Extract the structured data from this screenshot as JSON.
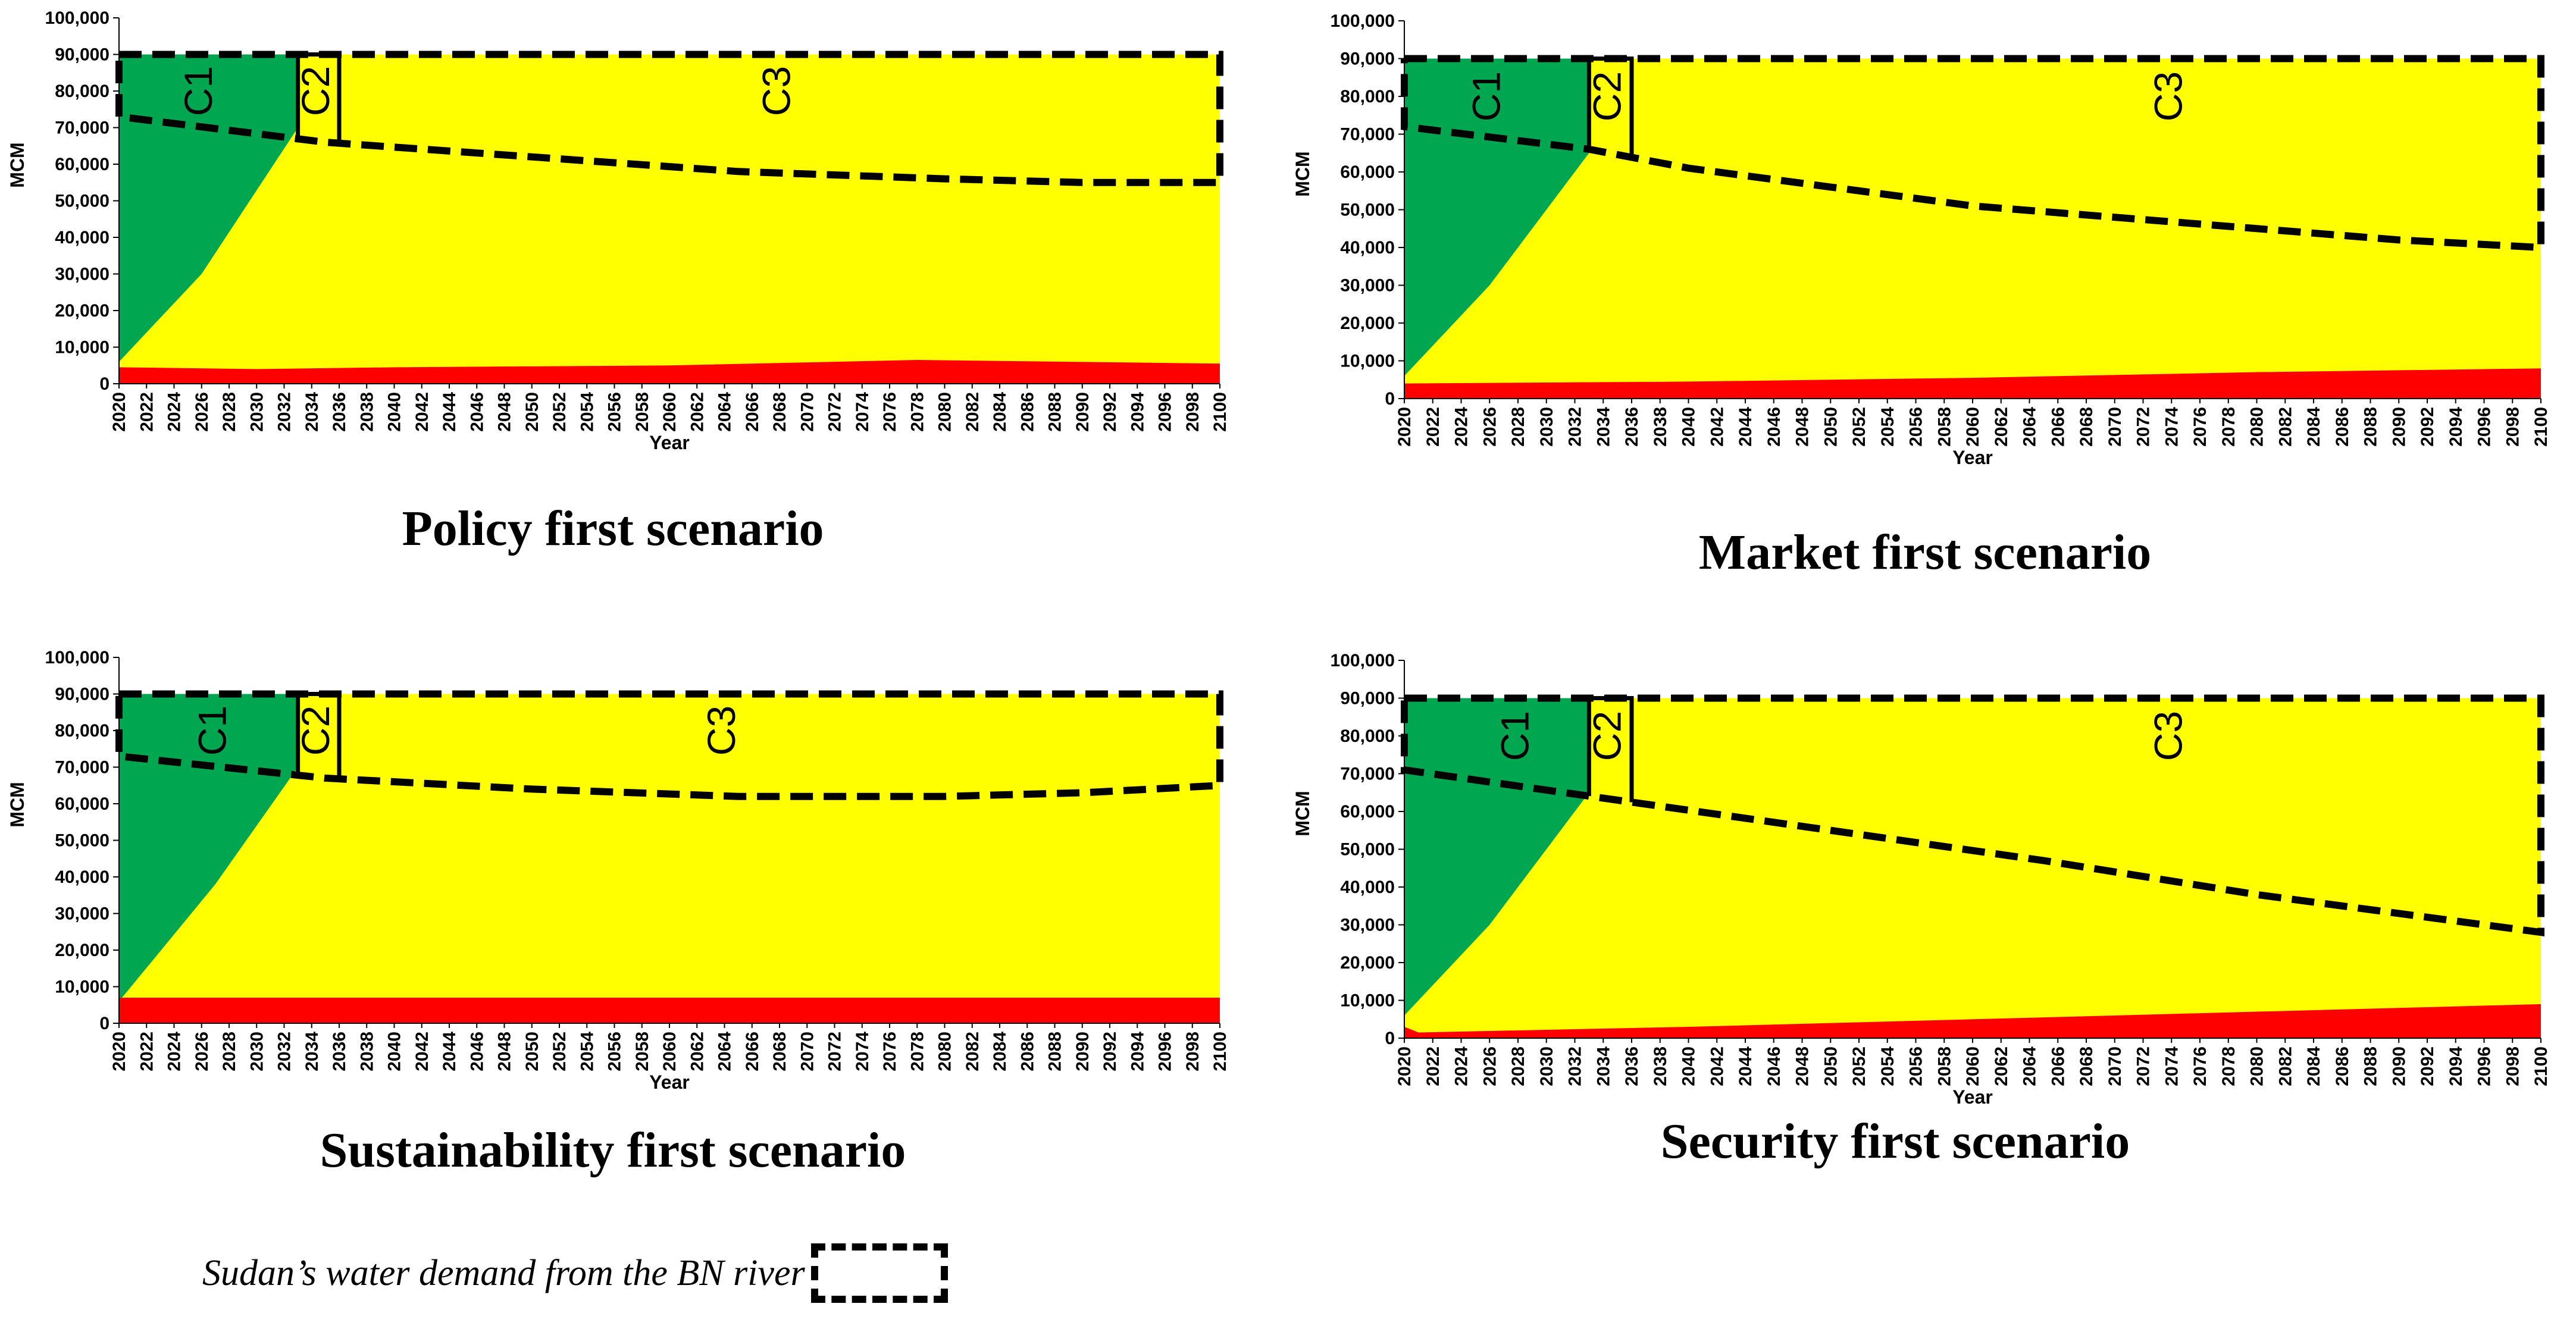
{
  "colors": {
    "green": "#00A650",
    "yellow": "#FFFF00",
    "red": "#FF0000",
    "demand": "#000000"
  },
  "legend": {
    "label": "Sudan’s water demand from the BN river"
  },
  "chart_data": [
    {
      "type": "area",
      "title": "Policy first scenario",
      "xlabel": "Year",
      "ylabel": "MCM",
      "ylim": [
        0,
        100000
      ],
      "yticks": [
        "0",
        "10,000",
        "20,000",
        "30,000",
        "40,000",
        "50,000",
        "60,000",
        "70,000",
        "80,000",
        "90,000",
        "100,000"
      ],
      "xlim": [
        2020,
        2100
      ],
      "xtick_step": 2,
      "series": [
        {
          "color": "red",
          "points": [
            [
              2020,
              4500
            ],
            [
              2030,
              4000
            ],
            [
              2040,
              4500
            ],
            [
              2060,
              5000
            ],
            [
              2078,
              6500
            ],
            [
              2100,
              5500
            ]
          ]
        },
        {
          "color": "yellow",
          "points": [
            [
              2020,
              90000
            ],
            [
              2100,
              90000
            ]
          ]
        },
        {
          "color": "green",
          "points": [
            [
              2020,
              90000
            ],
            [
              2033,
              90000
            ],
            [
              2033,
              70000
            ],
            [
              2026,
              30000
            ],
            [
              2020,
              6000
            ]
          ]
        }
      ],
      "demand": [
        [
          2020,
          73000
        ],
        [
          2035,
          66000
        ],
        [
          2050,
          62000
        ],
        [
          2065,
          58000
        ],
        [
          2080,
          56000
        ],
        [
          2090,
          55000
        ],
        [
          2100,
          55000
        ]
      ],
      "zones": [
        {
          "label": "C1",
          "x": 2026
        },
        {
          "label": "C2",
          "x": 2034.5
        },
        {
          "label": "C3",
          "x": 2068
        }
      ],
      "c2": [
        2033,
        2036
      ],
      "top": 90000
    },
    {
      "type": "area",
      "title": "Market first scenario",
      "xlabel": "Year",
      "ylabel": "MCM",
      "ylim": [
        0,
        100000
      ],
      "yticks": [
        "0",
        "10,000",
        "20,000",
        "30,000",
        "40,000",
        "50,000",
        "60,000",
        "70,000",
        "80,000",
        "90,000",
        "100,000"
      ],
      "xlim": [
        2020,
        2100
      ],
      "xtick_step": 2,
      "series": [
        {
          "color": "red",
          "points": [
            [
              2020,
              4000
            ],
            [
              2040,
              4500
            ],
            [
              2060,
              5500
            ],
            [
              2080,
              7000
            ],
            [
              2100,
              8000
            ]
          ]
        },
        {
          "color": "yellow",
          "points": [
            [
              2020,
              90000
            ],
            [
              2100,
              90000
            ]
          ]
        },
        {
          "color": "green",
          "points": [
            [
              2020,
              90000
            ],
            [
              2033,
              90000
            ],
            [
              2033,
              65000
            ],
            [
              2026,
              30000
            ],
            [
              2020,
              6000
            ]
          ]
        }
      ],
      "demand": [
        [
          2020,
          72000
        ],
        [
          2033,
          66000
        ],
        [
          2040,
          61000
        ],
        [
          2050,
          56000
        ],
        [
          2060,
          51000
        ],
        [
          2070,
          48000
        ],
        [
          2080,
          45000
        ],
        [
          2090,
          42000
        ],
        [
          2100,
          40000
        ]
      ],
      "zones": [
        {
          "label": "C1",
          "x": 2026
        },
        {
          "label": "C2",
          "x": 2034.5
        },
        {
          "label": "C3",
          "x": 2074
        }
      ],
      "c2": [
        2033,
        2036
      ],
      "top": 90000
    },
    {
      "type": "area",
      "title": "Sustainability first scenario",
      "xlabel": "Year",
      "ylabel": "MCM",
      "ylim": [
        0,
        100000
      ],
      "yticks": [
        "0",
        "10,000",
        "20,000",
        "30,000",
        "40,000",
        "50,000",
        "60,000",
        "70,000",
        "80,000",
        "90,000",
        "100,000"
      ],
      "xlim": [
        2020,
        2100
      ],
      "xtick_step": 2,
      "series": [
        {
          "color": "red",
          "points": [
            [
              2020,
              7000
            ],
            [
              2100,
              7000
            ]
          ]
        },
        {
          "color": "yellow",
          "points": [
            [
              2020,
              90000
            ],
            [
              2100,
              90000
            ]
          ]
        },
        {
          "color": "green",
          "points": [
            [
              2020,
              90000
            ],
            [
              2033,
              90000
            ],
            [
              2033,
              70000
            ],
            [
              2027,
              38000
            ],
            [
              2020,
              6000
            ]
          ]
        }
      ],
      "demand": [
        [
          2020,
          73000
        ],
        [
          2035,
          67000
        ],
        [
          2050,
          64000
        ],
        [
          2065,
          62000
        ],
        [
          2080,
          62000
        ],
        [
          2090,
          63000
        ],
        [
          2100,
          65000
        ]
      ],
      "zones": [
        {
          "label": "C1",
          "x": 2027
        },
        {
          "label": "C2",
          "x": 2034.5
        },
        {
          "label": "C3",
          "x": 2064
        }
      ],
      "c2": [
        2033,
        2036
      ],
      "top": 90000
    },
    {
      "type": "area",
      "title": "Security first scenario",
      "xlabel": "Year",
      "ylabel": "MCM",
      "ylim": [
        0,
        100000
      ],
      "yticks": [
        "0",
        "10,000",
        "20,000",
        "30,000",
        "40,000",
        "50,000",
        "60,000",
        "70,000",
        "80,000",
        "90,000",
        "100,000"
      ],
      "xlim": [
        2020,
        2100
      ],
      "xtick_step": 2,
      "series": [
        {
          "color": "red",
          "points": [
            [
              2020,
              3000
            ],
            [
              2021,
              1500
            ],
            [
              2040,
              3000
            ],
            [
              2060,
              5000
            ],
            [
              2080,
              7000
            ],
            [
              2100,
              9000
            ]
          ]
        },
        {
          "color": "yellow",
          "points": [
            [
              2020,
              90000
            ],
            [
              2100,
              90000
            ]
          ]
        },
        {
          "color": "green",
          "points": [
            [
              2020,
              90000
            ],
            [
              2033,
              90000
            ],
            [
              2033,
              65000
            ],
            [
              2026,
              30000
            ],
            [
              2020,
              6000
            ]
          ]
        }
      ],
      "demand": [
        [
          2020,
          71000
        ],
        [
          2035,
          63000
        ],
        [
          2050,
          55000
        ],
        [
          2065,
          47000
        ],
        [
          2080,
          38000
        ],
        [
          2090,
          33000
        ],
        [
          2100,
          28000
        ]
      ],
      "zones": [
        {
          "label": "C1",
          "x": 2028
        },
        {
          "label": "C2",
          "x": 2034.5
        },
        {
          "label": "C3",
          "x": 2074
        }
      ],
      "c2": [
        2033,
        2036
      ],
      "top": 90000
    }
  ]
}
